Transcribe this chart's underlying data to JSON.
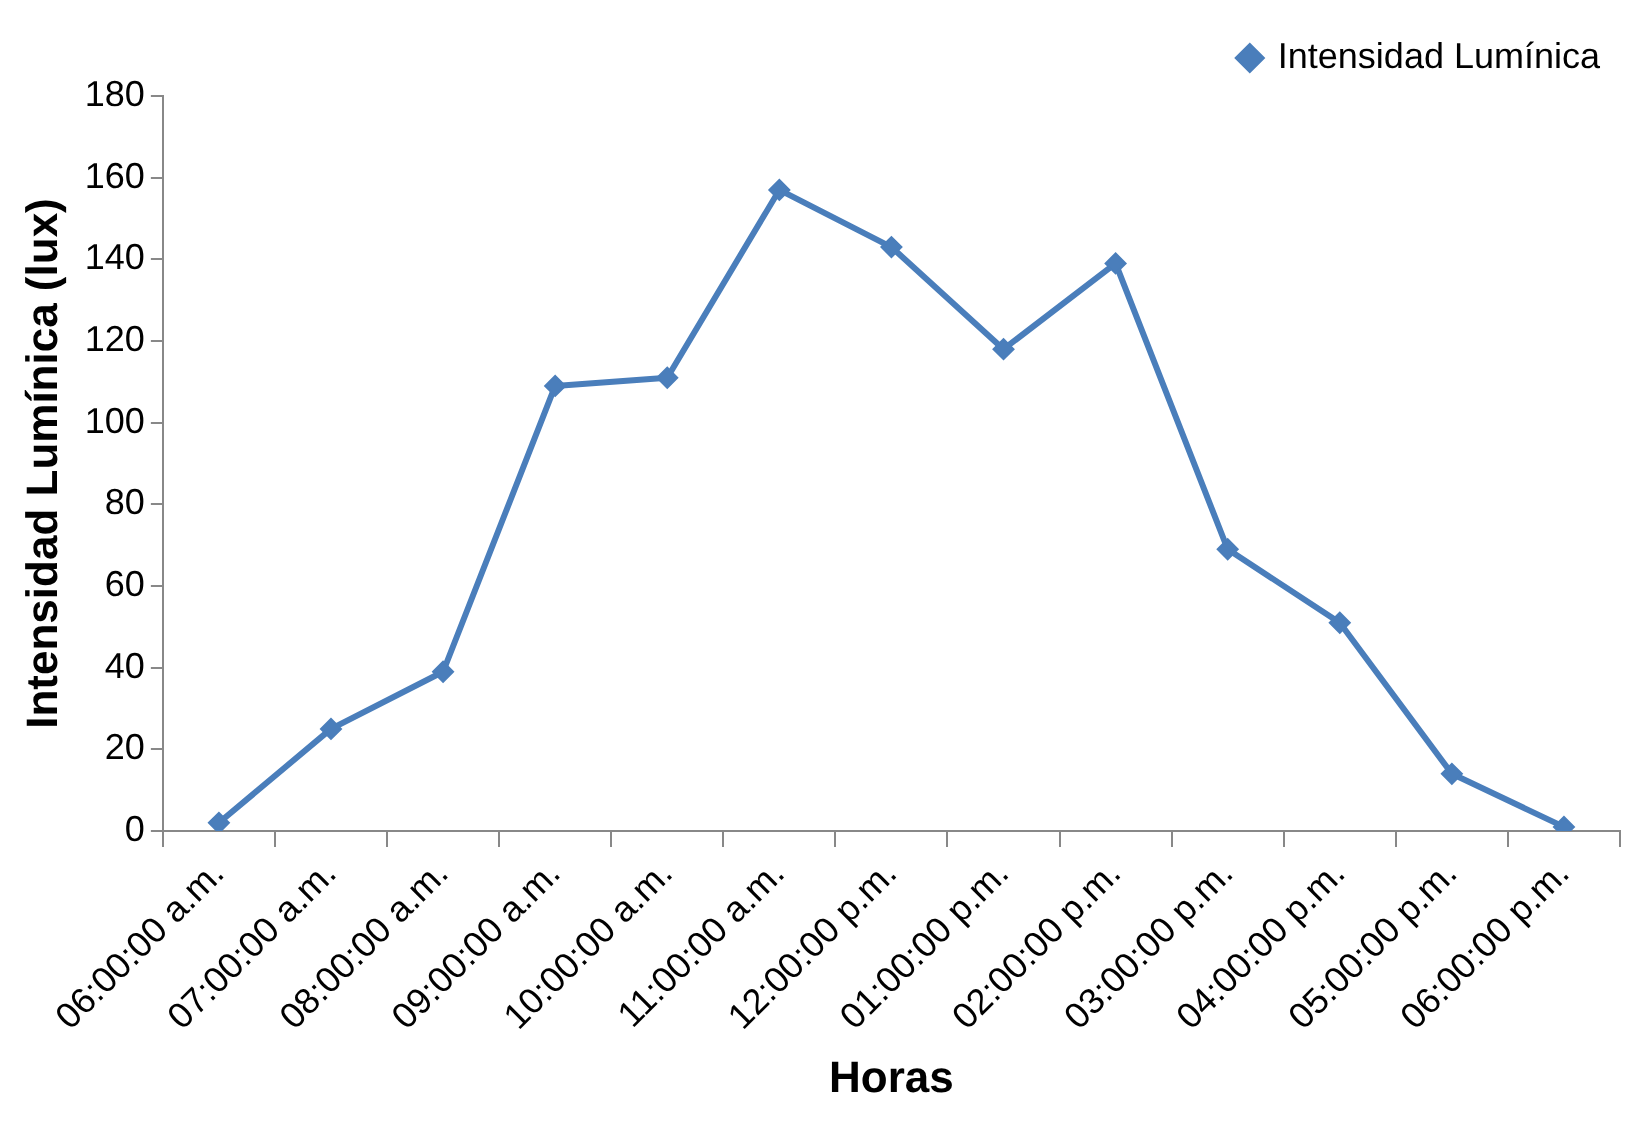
{
  "chart_data": {
    "type": "line",
    "xlabel": "Horas",
    "ylabel": "Intensidad Lumínica (lux)",
    "categories": [
      "06:00:00 a.m.",
      "07:00:00 a.m.",
      "08:00:00 a.m.",
      "09:00:00 a.m.",
      "10:00:00 a.m.",
      "11:00:00 a.m.",
      "12:00:00 p.m.",
      "01:00:00 p.m.",
      "02:00:00 p.m.",
      "03:00:00 p.m.",
      "04:00:00 p.m.",
      "05:00:00 p.m.",
      "06:00:00 p.m."
    ],
    "series": [
      {
        "name": "Intensidad Lumínica",
        "color": "#4a7ebb",
        "values": [
          2,
          25,
          39,
          109,
          111,
          157,
          143,
          118,
          139,
          69,
          51,
          14,
          1
        ]
      }
    ],
    "ylim": [
      0,
      180
    ],
    "yticks": [
      0,
      20,
      40,
      60,
      80,
      100,
      120,
      140,
      160,
      180
    ],
    "grid": false,
    "legend": "top right",
    "marker": "diamond",
    "line_style": "solid"
  }
}
